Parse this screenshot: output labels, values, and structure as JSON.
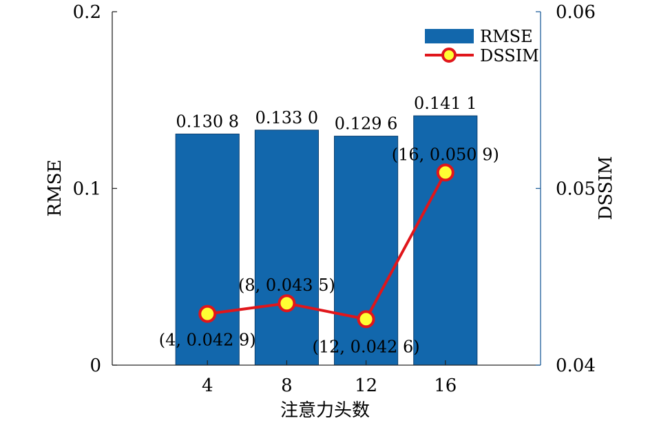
{
  "chart_data": {
    "type": "bar",
    "categories": [
      "4",
      "8",
      "12",
      "16"
    ],
    "xlabel": "注意力头数",
    "series": [
      {
        "name": "RMSE",
        "type": "bar",
        "axis": "left",
        "color": "#1267ac",
        "values": [
          0.1308,
          0.133,
          0.1296,
          0.1411
        ],
        "value_labels": [
          "0.130 8",
          "0.133 0",
          "0.129 6",
          "0.141 1"
        ]
      },
      {
        "name": "DSSIM",
        "type": "line",
        "axis": "right",
        "color": "#e0161b",
        "marker_color": "#ffff33",
        "values": [
          0.0429,
          0.0435,
          0.0426,
          0.0509
        ],
        "point_labels": [
          "(4, 0.042 9)",
          "(8, 0.043 5)",
          "(12, 0.042 6)",
          "(16, 0.050 9)"
        ]
      }
    ],
    "y_left": {
      "label": "RMSE",
      "lim": [
        0,
        0.2
      ],
      "ticks": [
        0,
        0.1,
        0.2
      ],
      "tick_labels": [
        "0",
        "0.1",
        "0.2"
      ]
    },
    "y_right": {
      "label": "DSSIM",
      "lim": [
        0.04,
        0.06
      ],
      "ticks": [
        0.04,
        0.05,
        0.06
      ],
      "tick_labels": [
        "0.04",
        "0.05",
        "0.06"
      ]
    },
    "legend": {
      "position": "top-right",
      "entries": [
        "RMSE",
        "DSSIM"
      ]
    },
    "grid": false
  }
}
